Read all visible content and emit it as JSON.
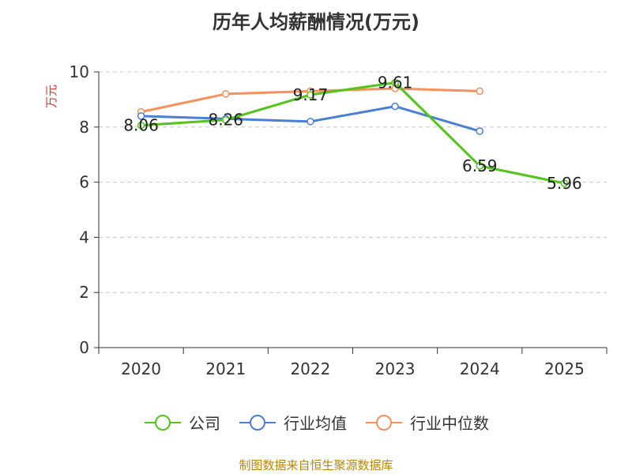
{
  "chart_data": {
    "type": "line",
    "title": "历年人均薪酬情况(万元)",
    "ylabel": "万元",
    "xlabel": "",
    "categories": [
      "2020",
      "2021",
      "2022",
      "2023",
      "2024",
      "2025"
    ],
    "ylim": [
      0,
      10
    ],
    "yticks": [
      0,
      2,
      4,
      6,
      8,
      10
    ],
    "grid": true,
    "legend_position": "bottom",
    "series": [
      {
        "name": "公司",
        "color": "#52c41a",
        "values": [
          8.06,
          8.26,
          9.17,
          9.61,
          6.59,
          5.96
        ],
        "labels": [
          "8.06",
          "8.26",
          "9.17",
          "9.61",
          "6.59",
          "5.96"
        ]
      },
      {
        "name": "行业均值",
        "color": "#4a7fd6",
        "values": [
          8.4,
          8.3,
          8.2,
          8.75,
          7.85,
          null
        ]
      },
      {
        "name": "行业中位数",
        "color": "#f7905a",
        "values": [
          8.55,
          9.2,
          9.3,
          9.4,
          9.3,
          null
        ]
      }
    ]
  },
  "source_text": "制图数据来自恒生聚源数据库"
}
